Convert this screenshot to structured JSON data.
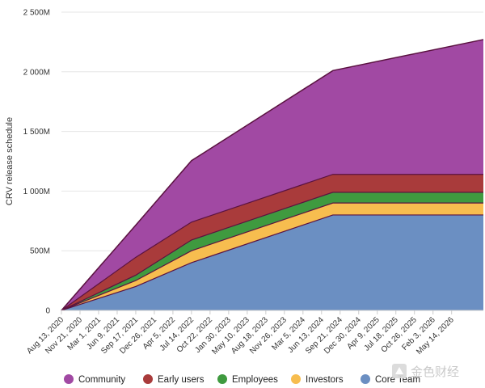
{
  "chart_data": {
    "type": "area",
    "stacked": true,
    "ylabel": "CRV release schedule",
    "yticks": [
      {
        "value": 0,
        "label": "0"
      },
      {
        "value": 500,
        "label": "500M"
      },
      {
        "value": 1000,
        "label": "1 000M"
      },
      {
        "value": 1500,
        "label": "1 500M"
      },
      {
        "value": 2000,
        "label": "2 000M"
      },
      {
        "value": 2500,
        "label": "2 500M"
      }
    ],
    "ylim": [
      0,
      2500
    ],
    "xlim": [
      "2020-08-13",
      "2026-11-01"
    ],
    "xticks": [
      {
        "date": "2020-08-13",
        "label": "Aug 13, 2020"
      },
      {
        "date": "2020-11-21",
        "label": "Nov 21, 2020"
      },
      {
        "date": "2021-03-01",
        "label": "Mar 1, 2021"
      },
      {
        "date": "2021-06-09",
        "label": "Jun 9, 2021"
      },
      {
        "date": "2021-09-17",
        "label": "Sep 17, 2021"
      },
      {
        "date": "2021-12-26",
        "label": "Dec 26, 2021"
      },
      {
        "date": "2022-04-05",
        "label": "Apr 5, 2022"
      },
      {
        "date": "2022-07-14",
        "label": "Jul 14, 2022"
      },
      {
        "date": "2022-10-22",
        "label": "Oct 22, 2022"
      },
      {
        "date": "2023-01-30",
        "label": "Jan 30, 2023"
      },
      {
        "date": "2023-05-10",
        "label": "May 10, 2023"
      },
      {
        "date": "2023-08-18",
        "label": "Aug 18, 2023"
      },
      {
        "date": "2023-11-26",
        "label": "Nov 26, 2023"
      },
      {
        "date": "2024-03-05",
        "label": "Mar 5, 2024"
      },
      {
        "date": "2024-06-13",
        "label": "Jun 13, 2024"
      },
      {
        "date": "2024-09-21",
        "label": "Sep 21, 2024"
      },
      {
        "date": "2024-12-30",
        "label": "Dec 30, 2024"
      },
      {
        "date": "2025-04-09",
        "label": "Apr 9, 2025"
      },
      {
        "date": "2025-07-18",
        "label": "Jul 18, 2025"
      },
      {
        "date": "2025-10-26",
        "label": "Oct 26, 2025"
      },
      {
        "date": "2026-02-03",
        "label": "Feb 3, 2026"
      },
      {
        "date": "2026-05-14",
        "label": "May 14, 2026"
      }
    ],
    "x": [
      "2020-08-13",
      "2021-09-17",
      "2022-07-14",
      "2024-08-13",
      "2026-11-01"
    ],
    "series": [
      {
        "name": "Core Team",
        "color": "#6b8fc2",
        "values": [
          0,
          200,
          400,
          800,
          800
        ]
      },
      {
        "name": "Investors",
        "color": "#f7bd4f",
        "values": [
          0,
          50,
          100,
          100,
          100
        ]
      },
      {
        "name": "Employees",
        "color": "#3f9a3f",
        "values": [
          0,
          45,
          90,
          90,
          90
        ]
      },
      {
        "name": "Early users",
        "color": "#a93b3b",
        "values": [
          0,
          150,
          150,
          150,
          150
        ]
      },
      {
        "name": "Community",
        "color": "#a149a3",
        "values": [
          0,
          270,
          515,
          870,
          1130
        ]
      }
    ],
    "grid": true,
    "legend_position": "bottom"
  },
  "colors": {
    "background": "#ffffff",
    "grid": "#e6e6e6",
    "axis": "#cccccc",
    "text": "#333333",
    "outline": "#5a1240"
  },
  "watermark": {
    "icon": "jinse-logo-icon",
    "text": "金色财经"
  }
}
